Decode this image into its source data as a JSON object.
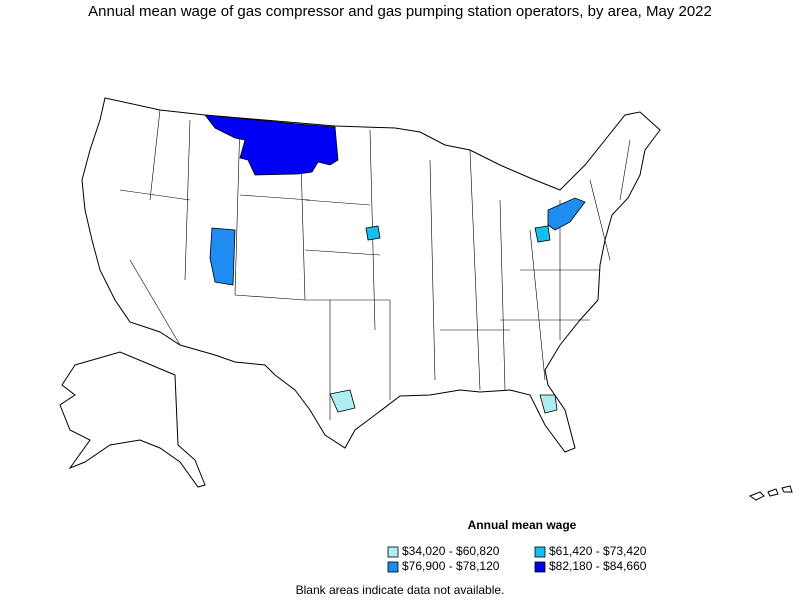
{
  "title": "Annual mean wage of gas compressor and gas pumping station operators, by area, May 2022",
  "legend": {
    "title": "Annual mean wage",
    "items": [
      {
        "label": "$34,020 - $60,820",
        "color": "#aeeef2"
      },
      {
        "label": "$61,420 - $73,420",
        "color": "#14bff0"
      },
      {
        "label": "$76,900 - $78,120",
        "color": "#1e8cf0"
      },
      {
        "label": "$82,180 - $84,660",
        "color": "#0000f5"
      }
    ]
  },
  "footnote": "Blank areas indicate data not available."
}
